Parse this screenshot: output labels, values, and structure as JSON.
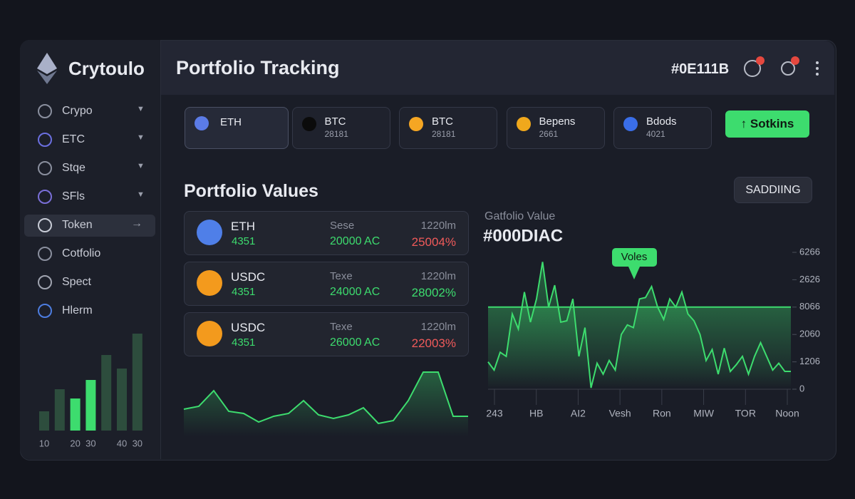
{
  "sidebar": {
    "brand": "Crytoulo",
    "menu": [
      {
        "label": "Crypo",
        "icon_color": "#8a8f9e",
        "dropdown": true
      },
      {
        "label": "ETC",
        "icon_color": "#6b6fe0",
        "dropdown": true
      },
      {
        "label": "Stqe",
        "icon_color": "#8a8f9e",
        "dropdown": true
      },
      {
        "label": "SFls",
        "icon_color": "#7a6fd8",
        "dropdown": true
      },
      {
        "label": "Token",
        "icon_color": "#c8ccd6",
        "active": true
      },
      {
        "label": "Cotfolio",
        "icon_color": "#8a8f9e"
      },
      {
        "label": "Spect",
        "icon_color": "#a0a4b0"
      },
      {
        "label": "Hlerm",
        "icon_color": "#4d7de0"
      }
    ]
  },
  "header": {
    "title": "Portfolio Tracking",
    "code": "#0E111B"
  },
  "token_cards": [
    {
      "name": "ETH",
      "icon_color": "#5b7be6",
      "active": true
    },
    {
      "name": "BTC",
      "value": 28181,
      "icon_color": "#0b0b0b"
    },
    {
      "name": "BTC",
      "value": 28181,
      "icon_color": "#f5a623"
    },
    {
      "name": "Bepens",
      "value": 2661,
      "icon_color": "#f0a81c"
    },
    {
      "name": "Bdods",
      "value": 4021,
      "icon_color": "#3a6ee8"
    }
  ],
  "action_button": "Sotkins",
  "section_title": "Portfolio Values",
  "secondary_button": "SADDIING",
  "portfolio_rows": [
    {
      "name": "ETH",
      "value": 4351,
      "mid_label": "Sese",
      "mid_value": "20000 AC",
      "right_label": "1220lm",
      "change": "25004%",
      "change_color": "#f05a5a",
      "icon_color": "#4f7fe8"
    },
    {
      "name": "USDC",
      "value": 4351,
      "mid_label": "Texe",
      "mid_value": "24000 AC",
      "right_label": "1220lm",
      "change": "28002%",
      "change_color": "#3ddc6e",
      "icon_color": "#f39a1d"
    },
    {
      "name": "USDC",
      "value": 4351,
      "mid_label": "Texe",
      "mid_value": "26000 AC",
      "right_label": "1220lm",
      "change": "22003%",
      "change_color": "#f05a5a",
      "icon_color": "#f39a1d"
    }
  ],
  "chart_data": [
    {
      "type": "bar",
      "categories": [
        "10",
        null,
        "20",
        "30",
        null,
        "40",
        "30"
      ],
      "values": [
        27,
        58,
        45,
        71,
        106,
        87,
        136
      ],
      "colors": [
        "#2d4d3d",
        "#2d4d3d",
        "#3ddc6e",
        "#3ddc6e",
        "#2d4d3d",
        "#2d4d3d",
        "#2d4d3d"
      ]
    },
    {
      "type": "line",
      "color": "#3ddc6e",
      "values": [
        38,
        42,
        64,
        35,
        32,
        20,
        28,
        32,
        50,
        30,
        25,
        30,
        40,
        18,
        22,
        50,
        90,
        90,
        28,
        28
      ]
    },
    {
      "type": "line",
      "title": "Gatfolio Value",
      "subtitle": "#000DIAC",
      "annotation": "Voles",
      "color": "#3ddc6e",
      "ylim": [
        0,
        100
      ],
      "yticks": [
        0,
        {
          "value": 20,
          "label": "1206"
        },
        {
          "value": 40,
          "label": "2060"
        },
        {
          "value": 60,
          "label": "8066"
        },
        {
          "value": 80,
          "label": "2626"
        },
        {
          "value": 100,
          "label": "6266"
        }
      ],
      "reference_line": 60,
      "xtick_labels": [
        "243",
        "HB",
        "AI2",
        "Vesh",
        "Ron",
        "MIW",
        "TOR",
        "Noon"
      ],
      "values": [
        20,
        14,
        27,
        24,
        55,
        44,
        71,
        49,
        66,
        93,
        60,
        76,
        49,
        50,
        66,
        24,
        45,
        1,
        19,
        11,
        21,
        14,
        40,
        47,
        45,
        66,
        67,
        75,
        60,
        51,
        66,
        60,
        71,
        55,
        50,
        40,
        21,
        29,
        11,
        30,
        13,
        18,
        24,
        11,
        24,
        34,
        24,
        14,
        19,
        13,
        13
      ]
    }
  ]
}
